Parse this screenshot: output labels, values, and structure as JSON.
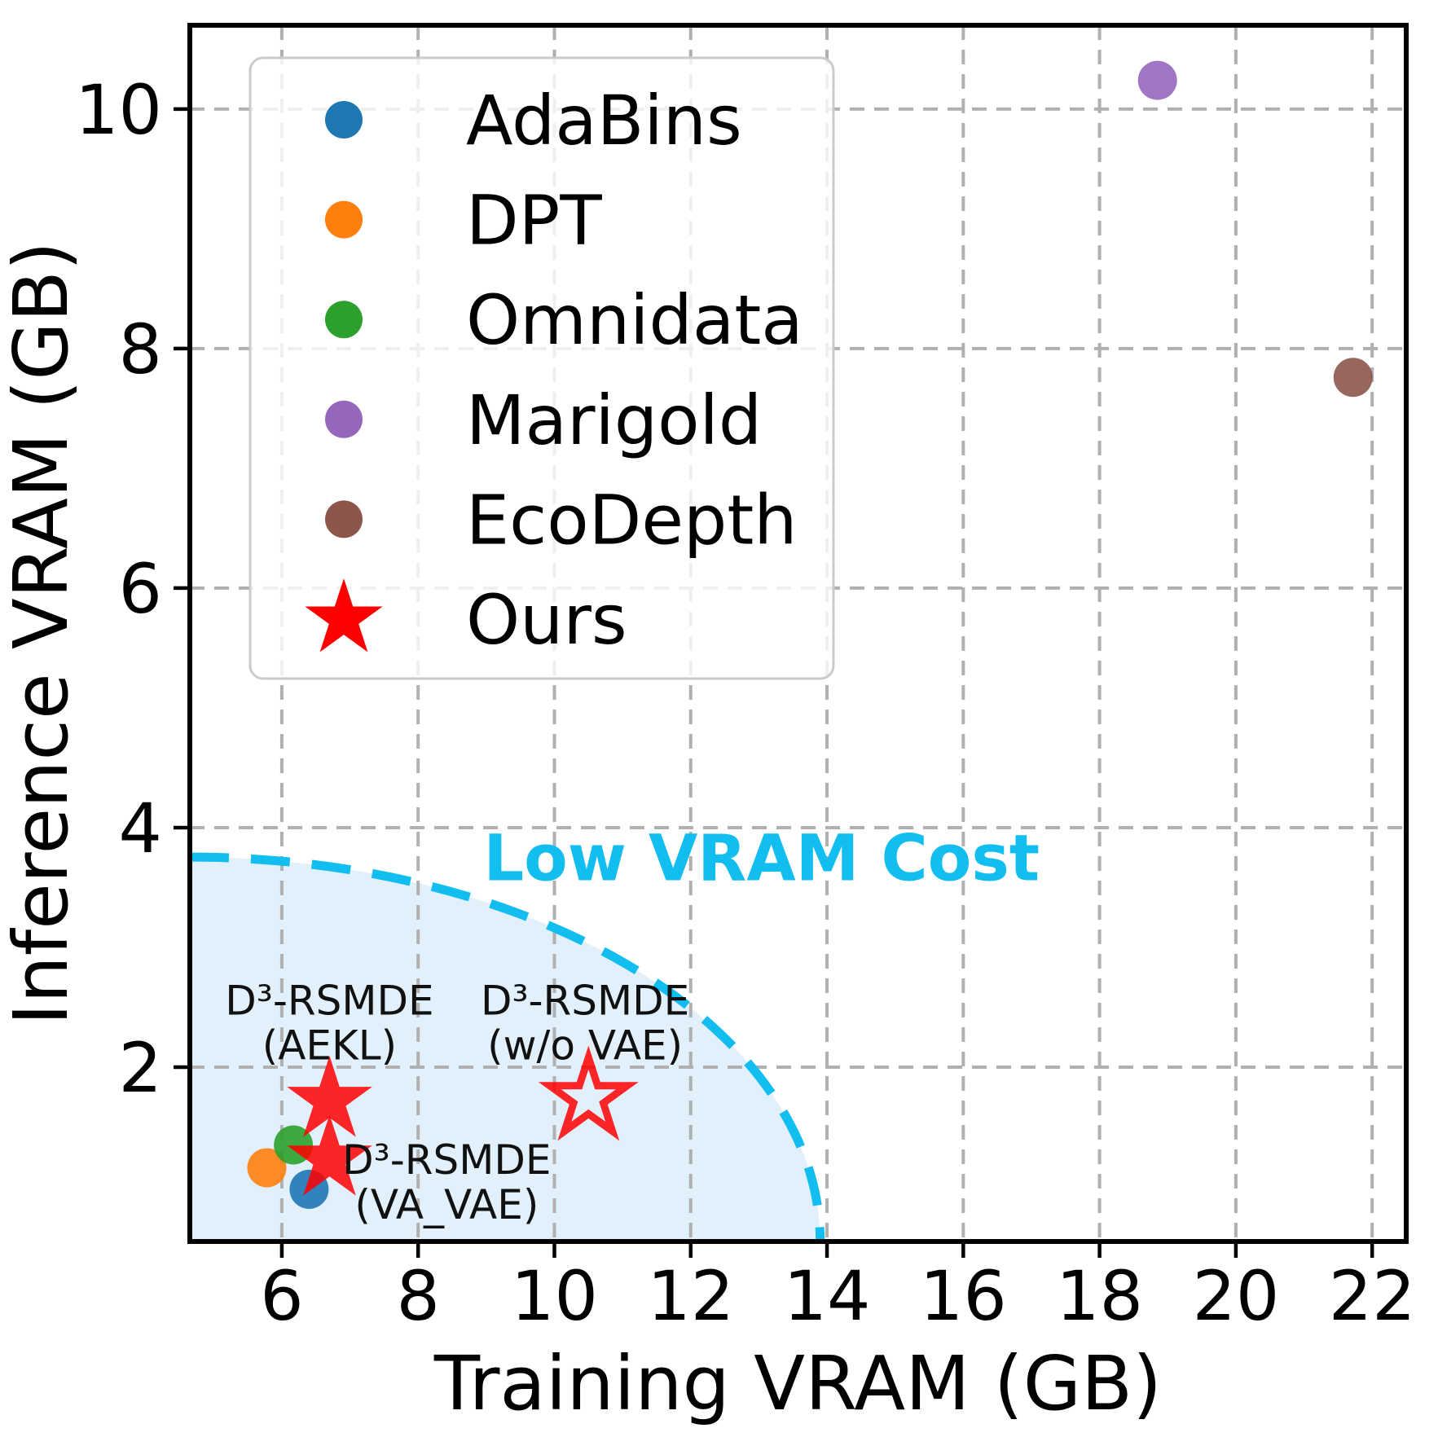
{
  "figure": {
    "background": "#ffffff",
    "text_color": "#000000",
    "grid_color": "#b0b0b0",
    "spine_color": "#000000"
  },
  "chart_data": {
    "type": "scatter",
    "title": "",
    "xlabel": "Training VRAM (GB)",
    "ylabel": "Inference VRAM (GB)",
    "xlim": [
      4.65,
      22.5
    ],
    "ylim": [
      0.544,
      10.7
    ],
    "xticks": [
      6,
      8,
      10,
      12,
      14,
      16,
      18,
      20,
      22
    ],
    "yticks": [
      2,
      4,
      6,
      8,
      10
    ],
    "grid": true,
    "grid_style": "dashed",
    "legend_position": "upper-left",
    "series": [
      {
        "name": "AdaBins",
        "marker": "circle",
        "color": "#1f77b4",
        "in_legend": true,
        "points": [
          [
            6.4,
            0.98
          ]
        ]
      },
      {
        "name": "DPT",
        "marker": "circle",
        "color": "#ff7f0e",
        "in_legend": true,
        "points": [
          [
            5.78,
            1.16
          ]
        ]
      },
      {
        "name": "Omnidata",
        "marker": "circle",
        "color": "#2ca02c",
        "in_legend": true,
        "points": [
          [
            6.17,
            1.35
          ]
        ]
      },
      {
        "name": "Marigold",
        "marker": "circle",
        "color": "#9467bd",
        "in_legend": true,
        "points": [
          [
            18.85,
            10.24
          ]
        ]
      },
      {
        "name": "EcoDepth",
        "marker": "circle",
        "color": "#8c564b",
        "in_legend": true,
        "points": [
          [
            21.72,
            7.76
          ]
        ]
      },
      {
        "name": "Ours",
        "marker": "star",
        "color": "#ff0000",
        "in_legend": true,
        "points": [
          [
            6.7,
            1.72
          ],
          [
            6.7,
            1.23
          ]
        ]
      },
      {
        "name": "Ours (w/o VAE)",
        "marker": "star-open",
        "color": "#ff0000",
        "in_legend": false,
        "points": [
          [
            10.5,
            1.74
          ]
        ]
      }
    ],
    "annotations": [
      {
        "id": "aekl",
        "lines": [
          "D³-RSMDE",
          "(AEKL)"
        ],
        "x": 6.7,
        "y": 2.44
      },
      {
        "id": "wo-vae",
        "lines": [
          "D³-RSMDE",
          "(w/o VAE)"
        ],
        "x": 10.45,
        "y": 2.44
      },
      {
        "id": "va-vae",
        "lines": [
          "D³-RSMDE",
          "(VA_VAE)"
        ],
        "x": 8.42,
        "y": 1.11
      }
    ],
    "region": {
      "label": "Low VRAM Cost",
      "label_x": 13.04,
      "label_y": 3.56,
      "line_color": "#12bdf0",
      "fill_color": "#e2f0fb",
      "center_x": 4.65,
      "center_y": 0.544,
      "rx": 9.25,
      "ry": 3.21
    }
  }
}
